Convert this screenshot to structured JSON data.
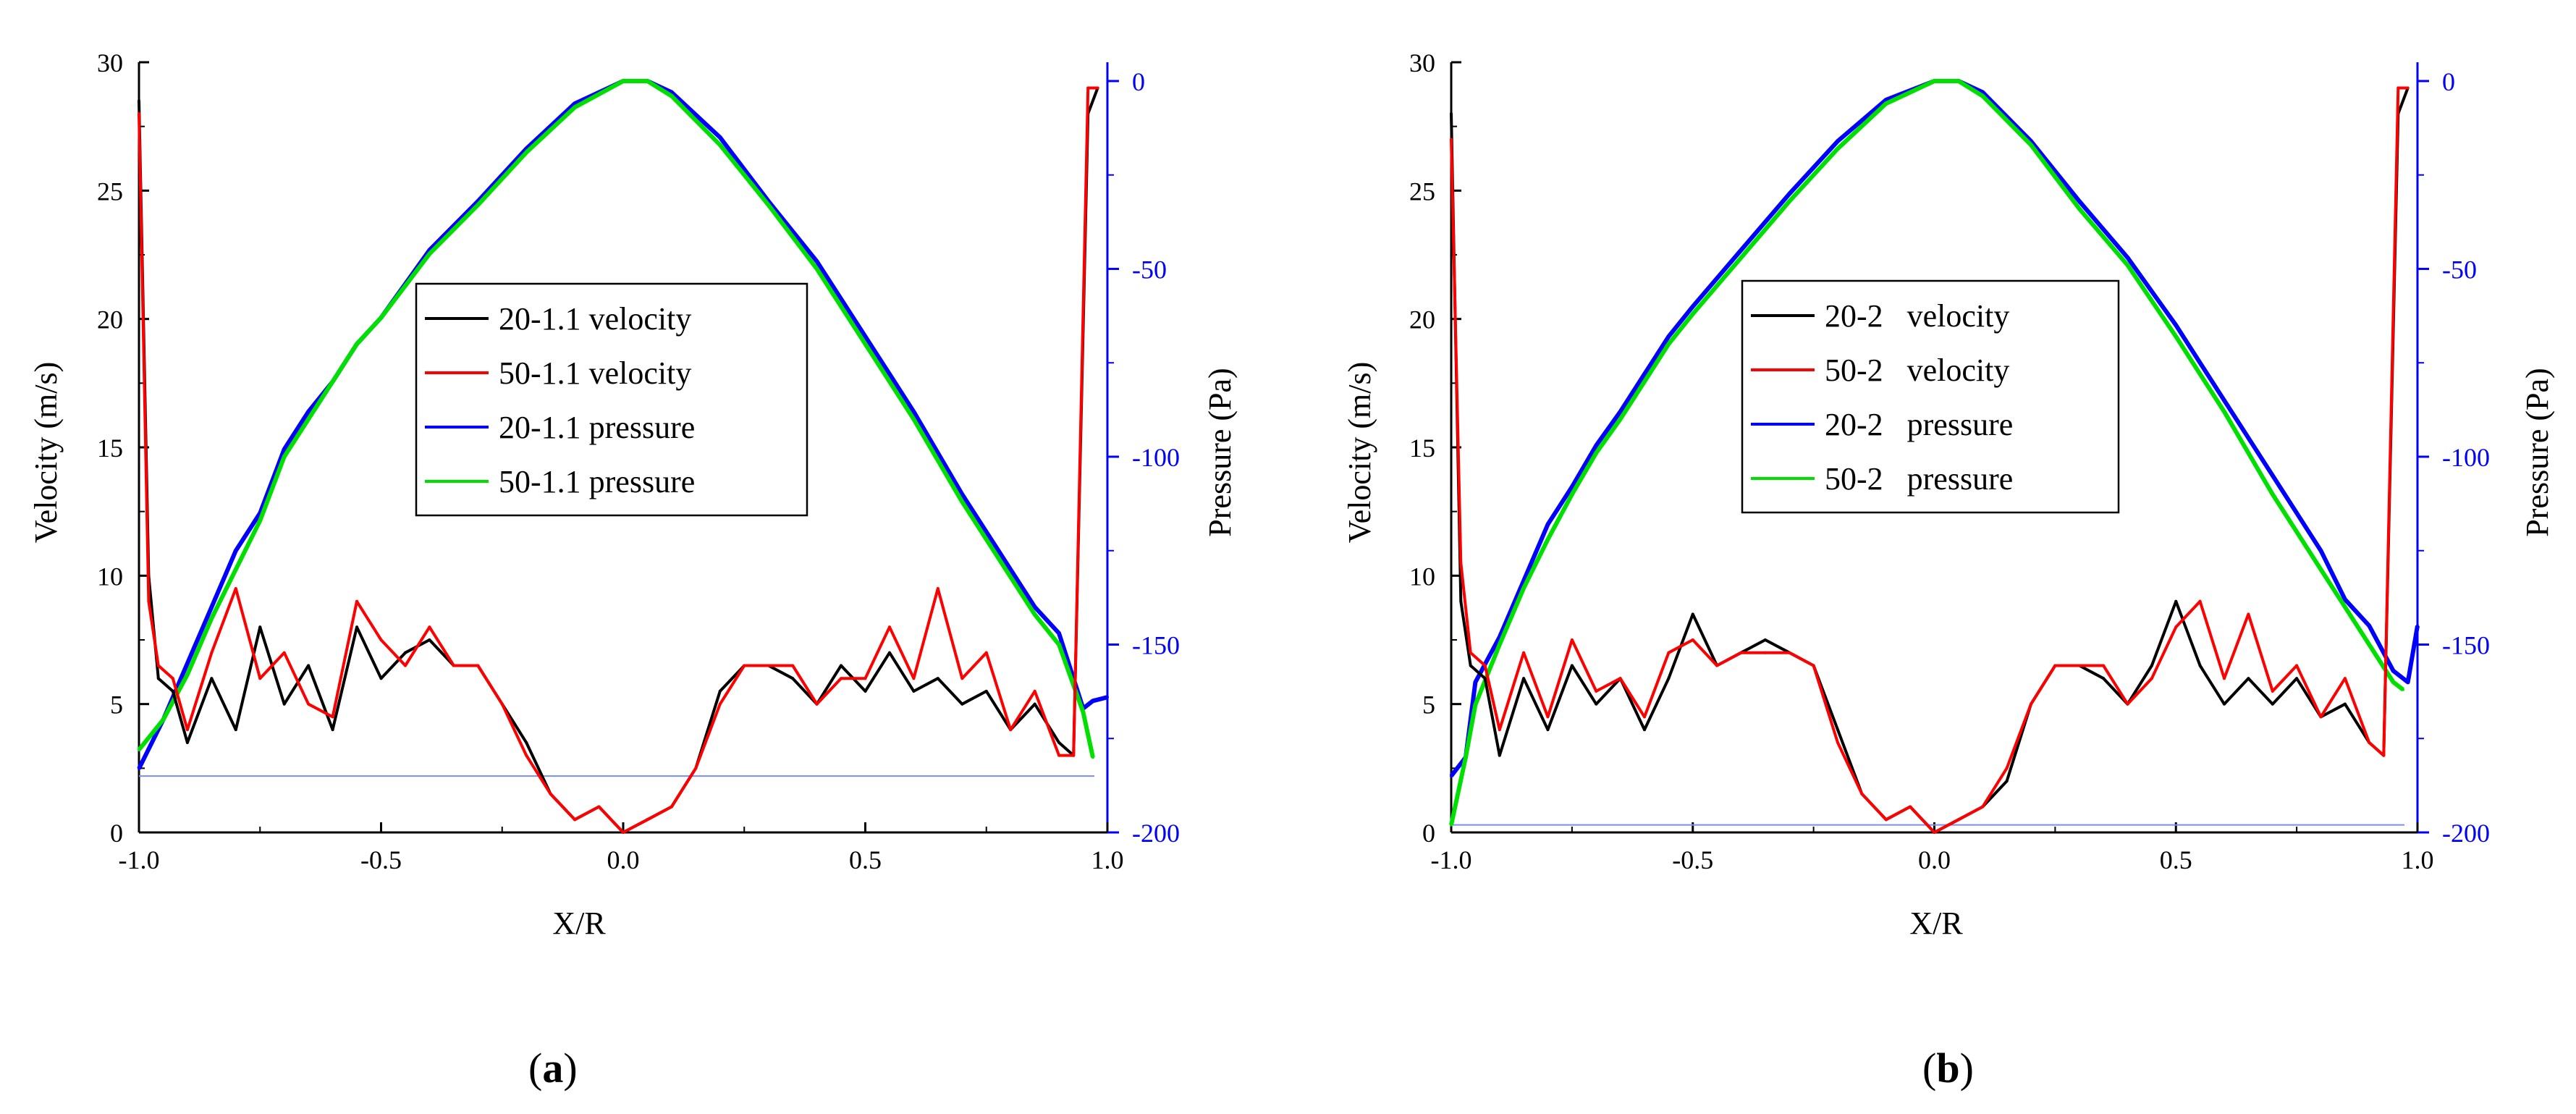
{
  "chart_data": [
    {
      "panel": "a",
      "panel_label_open": "(",
      "panel_label_letter": "a",
      "panel_label_close": ")",
      "type": "line",
      "xlabel": "X/R",
      "ylabel": "Velocity (m/s)",
      "ylabel2": "Pressure (Pa)",
      "xlim": [
        -1.0,
        1.0
      ],
      "ylim": [
        0,
        30
      ],
      "y2lim": [
        -200,
        5
      ],
      "xticks": [
        "-1.0",
        "-0.5",
        "0.0",
        "0.5",
        "1.0"
      ],
      "yticks": [
        "0",
        "5",
        "10",
        "15",
        "20",
        "25",
        "30"
      ],
      "y2ticks": [
        "0",
        "-50",
        "-100",
        "-150",
        "-200"
      ],
      "legend": [
        "20-1.1 velocity",
        "50-1.1 velocity",
        "20-1.1 pressure",
        "50-1.1 pressure"
      ],
      "colors": [
        "#000000",
        "#ff0000",
        "#0000ff",
        "#00e000"
      ],
      "series": [
        {
          "name": "20-1.1 velocity",
          "axis": "left",
          "x": [
            -1.0,
            -0.98,
            -0.96,
            -0.93,
            -0.9,
            -0.85,
            -0.8,
            -0.75,
            -0.7,
            -0.65,
            -0.6,
            -0.55,
            -0.5,
            -0.45,
            -0.4,
            -0.35,
            -0.3,
            -0.25,
            -0.2,
            -0.15,
            -0.1,
            -0.05,
            0.0,
            0.05,
            0.1,
            0.15,
            0.2,
            0.25,
            0.3,
            0.35,
            0.4,
            0.45,
            0.5,
            0.55,
            0.6,
            0.65,
            0.7,
            0.75,
            0.8,
            0.85,
            0.9,
            0.93,
            0.96,
            0.98
          ],
          "values": [
            28.5,
            10,
            6,
            5.5,
            3.5,
            6,
            4,
            8,
            5,
            6.5,
            4,
            8,
            6,
            7,
            7.5,
            6.5,
            6.5,
            5,
            3.5,
            1.5,
            0.5,
            1,
            0,
            0.5,
            1,
            2.5,
            5.5,
            6.5,
            6.5,
            6,
            5,
            6.5,
            5.5,
            7,
            5.5,
            6,
            5,
            5.5,
            4,
            5,
            3.5,
            3,
            28,
            29
          ]
        },
        {
          "name": "50-1.1 velocity",
          "axis": "left",
          "x": [
            -1.0,
            -0.98,
            -0.96,
            -0.93,
            -0.9,
            -0.85,
            -0.8,
            -0.75,
            -0.7,
            -0.65,
            -0.6,
            -0.55,
            -0.5,
            -0.45,
            -0.4,
            -0.35,
            -0.3,
            -0.25,
            -0.2,
            -0.15,
            -0.1,
            -0.05,
            0.0,
            0.05,
            0.1,
            0.15,
            0.2,
            0.25,
            0.3,
            0.35,
            0.4,
            0.45,
            0.5,
            0.55,
            0.6,
            0.65,
            0.7,
            0.75,
            0.8,
            0.85,
            0.9,
            0.93,
            0.96,
            0.98
          ],
          "values": [
            28,
            9,
            6.5,
            6,
            4,
            7,
            9.5,
            6,
            7,
            5,
            4.5,
            9,
            7.5,
            6.5,
            8,
            6.5,
            6.5,
            5,
            3,
            1.5,
            0.5,
            1,
            0,
            0.5,
            1,
            2.5,
            5,
            6.5,
            6.5,
            6.5,
            5,
            6,
            6,
            8,
            6,
            9.5,
            6,
            7,
            4,
            5.5,
            3,
            3,
            29,
            29
          ]
        },
        {
          "name": "20-1.1 pressure",
          "axis": "right",
          "x": [
            -1.0,
            -0.95,
            -0.9,
            -0.85,
            -0.8,
            -0.75,
            -0.7,
            -0.65,
            -0.6,
            -0.55,
            -0.5,
            -0.4,
            -0.3,
            -0.2,
            -0.1,
            0.0,
            0.05,
            0.1,
            0.2,
            0.3,
            0.4,
            0.5,
            0.55,
            0.6,
            0.7,
            0.8,
            0.85,
            0.9,
            0.95,
            0.97,
            1.0
          ],
          "values": [
            -183,
            -170,
            -155,
            -140,
            -125,
            -115,
            -98,
            -88,
            -80,
            -70,
            -63,
            -45,
            -32,
            -18,
            -6,
            0,
            0,
            -3,
            -15,
            -32,
            -48,
            -68,
            -78,
            -88,
            -110,
            -130,
            -140,
            -147,
            -167,
            -165,
            -164
          ]
        },
        {
          "name": "50-1.1 pressure",
          "axis": "right",
          "x": [
            -1.0,
            -0.95,
            -0.9,
            -0.85,
            -0.8,
            -0.75,
            -0.7,
            -0.65,
            -0.6,
            -0.55,
            -0.5,
            -0.4,
            -0.3,
            -0.2,
            -0.1,
            0.0,
            0.05,
            0.1,
            0.2,
            0.3,
            0.4,
            0.5,
            0.55,
            0.6,
            0.7,
            0.8,
            0.85,
            0.9,
            0.95,
            0.97
          ],
          "values": [
            -178,
            -170,
            -158,
            -143,
            -130,
            -117,
            -100,
            -90,
            -80,
            -70,
            -63,
            -46,
            -33,
            -19,
            -7,
            0,
            0,
            -4,
            -17,
            -33,
            -50,
            -70,
            -80,
            -90,
            -112,
            -132,
            -142,
            -150,
            -168,
            -180
          ]
        }
      ],
      "reference_lines": [
        {
          "axis": "right",
          "y": -185,
          "color": "#7b8cff"
        }
      ]
    },
    {
      "panel": "b",
      "panel_label_open": "(",
      "panel_label_letter": "b",
      "panel_label_close": ")",
      "type": "line",
      "xlabel": "X/R",
      "ylabel": "Velocity (m/s)",
      "ylabel2": "Pressure (Pa)",
      "xlim": [
        -1.0,
        1.0
      ],
      "ylim": [
        0,
        30
      ],
      "y2lim": [
        -200,
        5
      ],
      "xticks": [
        "-1.0",
        "-0.5",
        "0.0",
        "0.5",
        "1.0"
      ],
      "yticks": [
        "0",
        "5",
        "10",
        "15",
        "20",
        "25",
        "30"
      ],
      "y2ticks": [
        "0",
        "-50",
        "-100",
        "-150",
        "-200"
      ],
      "legend": [
        "20-2   velocity",
        "50-2   velocity",
        "20-2   pressure",
        "50-2   pressure"
      ],
      "colors": [
        "#000000",
        "#ff0000",
        "#0000ff",
        "#00e000"
      ],
      "series": [
        {
          "name": "20-2 velocity",
          "axis": "left",
          "x": [
            -1.0,
            -0.98,
            -0.96,
            -0.93,
            -0.9,
            -0.85,
            -0.8,
            -0.75,
            -0.7,
            -0.65,
            -0.6,
            -0.55,
            -0.5,
            -0.45,
            -0.4,
            -0.35,
            -0.3,
            -0.25,
            -0.2,
            -0.15,
            -0.1,
            -0.05,
            0.0,
            0.05,
            0.1,
            0.15,
            0.2,
            0.25,
            0.3,
            0.35,
            0.4,
            0.45,
            0.5,
            0.55,
            0.6,
            0.65,
            0.7,
            0.75,
            0.8,
            0.85,
            0.9,
            0.93,
            0.96,
            0.98
          ],
          "values": [
            28,
            9,
            6.5,
            6,
            3,
            6,
            4,
            6.5,
            5,
            6,
            4,
            6,
            8.5,
            6.5,
            7,
            7.5,
            7,
            6.5,
            4,
            1.5,
            0.5,
            1,
            0,
            0.5,
            1,
            2,
            5,
            6.5,
            6.5,
            6,
            5,
            6.5,
            9,
            6.5,
            5,
            6,
            5,
            6,
            4.5,
            5,
            3.5,
            3,
            28,
            29
          ]
        },
        {
          "name": "50-2 velocity",
          "axis": "left",
          "x": [
            -1.0,
            -0.98,
            -0.96,
            -0.93,
            -0.9,
            -0.85,
            -0.8,
            -0.75,
            -0.7,
            -0.65,
            -0.6,
            -0.55,
            -0.5,
            -0.45,
            -0.4,
            -0.35,
            -0.3,
            -0.25,
            -0.2,
            -0.15,
            -0.1,
            -0.05,
            0.0,
            0.05,
            0.1,
            0.15,
            0.2,
            0.25,
            0.3,
            0.35,
            0.4,
            0.45,
            0.5,
            0.55,
            0.6,
            0.65,
            0.7,
            0.75,
            0.8,
            0.85,
            0.9,
            0.93,
            0.96,
            0.98
          ],
          "values": [
            27,
            10.5,
            7,
            6.5,
            4,
            7,
            4.5,
            7.5,
            5.5,
            6,
            4.5,
            7,
            7.5,
            6.5,
            7,
            7,
            7,
            6.5,
            3.5,
            1.5,
            0.5,
            1,
            0,
            0.5,
            1,
            2.5,
            5,
            6.5,
            6.5,
            6.5,
            5,
            6,
            8,
            9,
            6,
            8.5,
            5.5,
            6.5,
            4.5,
            6,
            3.5,
            3,
            29,
            29
          ]
        },
        {
          "name": "20-2 pressure",
          "axis": "right",
          "x": [
            -1.0,
            -0.97,
            -0.95,
            -0.9,
            -0.85,
            -0.8,
            -0.75,
            -0.7,
            -0.65,
            -0.6,
            -0.55,
            -0.5,
            -0.4,
            -0.3,
            -0.2,
            -0.1,
            0.0,
            0.05,
            0.1,
            0.2,
            0.3,
            0.4,
            0.5,
            0.55,
            0.6,
            0.7,
            0.8,
            0.85,
            0.9,
            0.95,
            0.98,
            1.0
          ],
          "values": [
            -185,
            -180,
            -160,
            -148,
            -133,
            -118,
            -108,
            -97,
            -88,
            -78,
            -68,
            -60,
            -45,
            -30,
            -16,
            -5,
            0,
            0,
            -3,
            -16,
            -32,
            -47,
            -65,
            -75,
            -85,
            -105,
            -125,
            -138,
            -145,
            -157,
            -160,
            -145
          ]
        },
        {
          "name": "50-2 pressure",
          "axis": "right",
          "x": [
            -1.0,
            -0.97,
            -0.95,
            -0.9,
            -0.85,
            -0.8,
            -0.75,
            -0.7,
            -0.65,
            -0.6,
            -0.55,
            -0.5,
            -0.4,
            -0.3,
            -0.2,
            -0.1,
            0.0,
            0.05,
            0.1,
            0.2,
            0.3,
            0.4,
            0.5,
            0.55,
            0.6,
            0.7,
            0.8,
            0.85,
            0.9,
            0.95,
            0.97
          ],
          "values": [
            -198,
            -180,
            -166,
            -150,
            -135,
            -122,
            -110,
            -99,
            -90,
            -80,
            -70,
            -62,
            -47,
            -32,
            -18,
            -6,
            0,
            0,
            -4,
            -17,
            -34,
            -49,
            -68,
            -78,
            -88,
            -110,
            -130,
            -140,
            -150,
            -160,
            -162
          ]
        }
      ],
      "reference_lines": [
        {
          "axis": "right",
          "y": -198,
          "color": "#7b8cff"
        }
      ]
    }
  ]
}
